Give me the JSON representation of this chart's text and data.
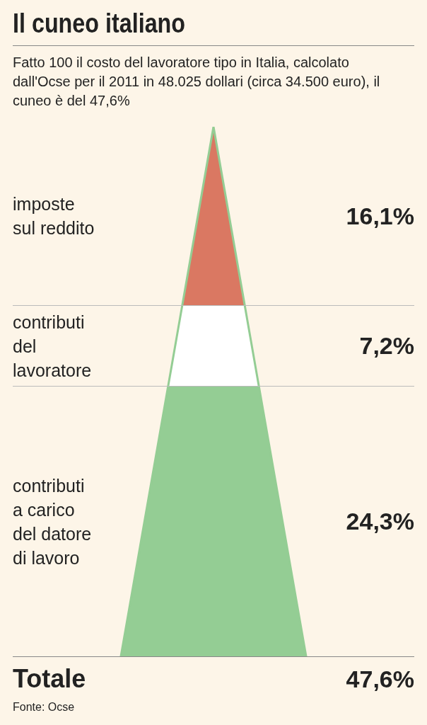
{
  "chart_data": {
    "type": "other",
    "title": "Il cuneo italiano",
    "subtitle": "Fatto 100 il costo del lavoratore tipo in Italia, calcolato dall'Ocse per il 2011 in 48.025 dollari (circa 34.500 euro), il cuneo è del 47,6%",
    "categories": [
      "imposte sul reddito",
      "contributi del lavoratore",
      "contributi a carico del datore di lavoro"
    ],
    "values": [
      16.1,
      7.2,
      24.3
    ],
    "colors": [
      "#da7862",
      "#ffffff",
      "#94cd94"
    ],
    "value_labels": [
      "16,1%",
      "7,2%",
      "24,3%"
    ],
    "totals": [
      "47,6%"
    ],
    "annotations": [
      "Totale",
      "Fonte: Ocse"
    ]
  }
}
